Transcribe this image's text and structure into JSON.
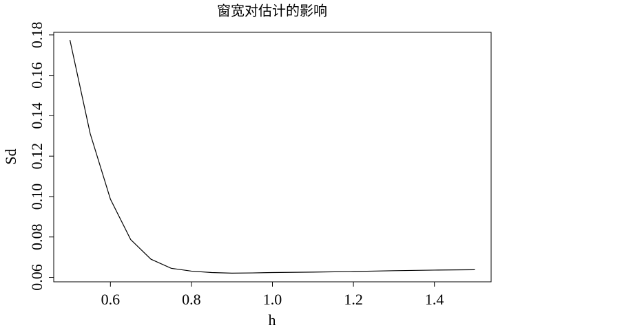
{
  "chart_data": {
    "type": "line",
    "title": "窗宽对估计的影响",
    "x_label": "h",
    "y_label": "Sd",
    "x": [
      0.5,
      0.55,
      0.6,
      0.65,
      0.7,
      0.75,
      0.8,
      0.85,
      0.9,
      0.95,
      1.0,
      1.1,
      1.2,
      1.3,
      1.4,
      1.5
    ],
    "series": [
      {
        "name": "Sd",
        "color": "#000000",
        "values": [
          0.1775,
          0.1312,
          0.0987,
          0.0787,
          0.069,
          0.0645,
          0.0631,
          0.0624,
          0.0621,
          0.0622,
          0.0624,
          0.0626,
          0.0629,
          0.0633,
          0.0636,
          0.0638
        ]
      }
    ],
    "xlim": [
      0.46,
      1.54
    ],
    "ylim": [
      0.0578,
      0.1813
    ],
    "xticks": [
      0.6,
      0.8,
      {
        "value": 1,
        "label": "1.0"
      },
      1.2,
      1.4
    ],
    "yticks": [
      0.06,
      0.08,
      {
        "value": 0.1,
        "label": "0.10"
      },
      0.12,
      0.14,
      0.16,
      0.18
    ]
  }
}
